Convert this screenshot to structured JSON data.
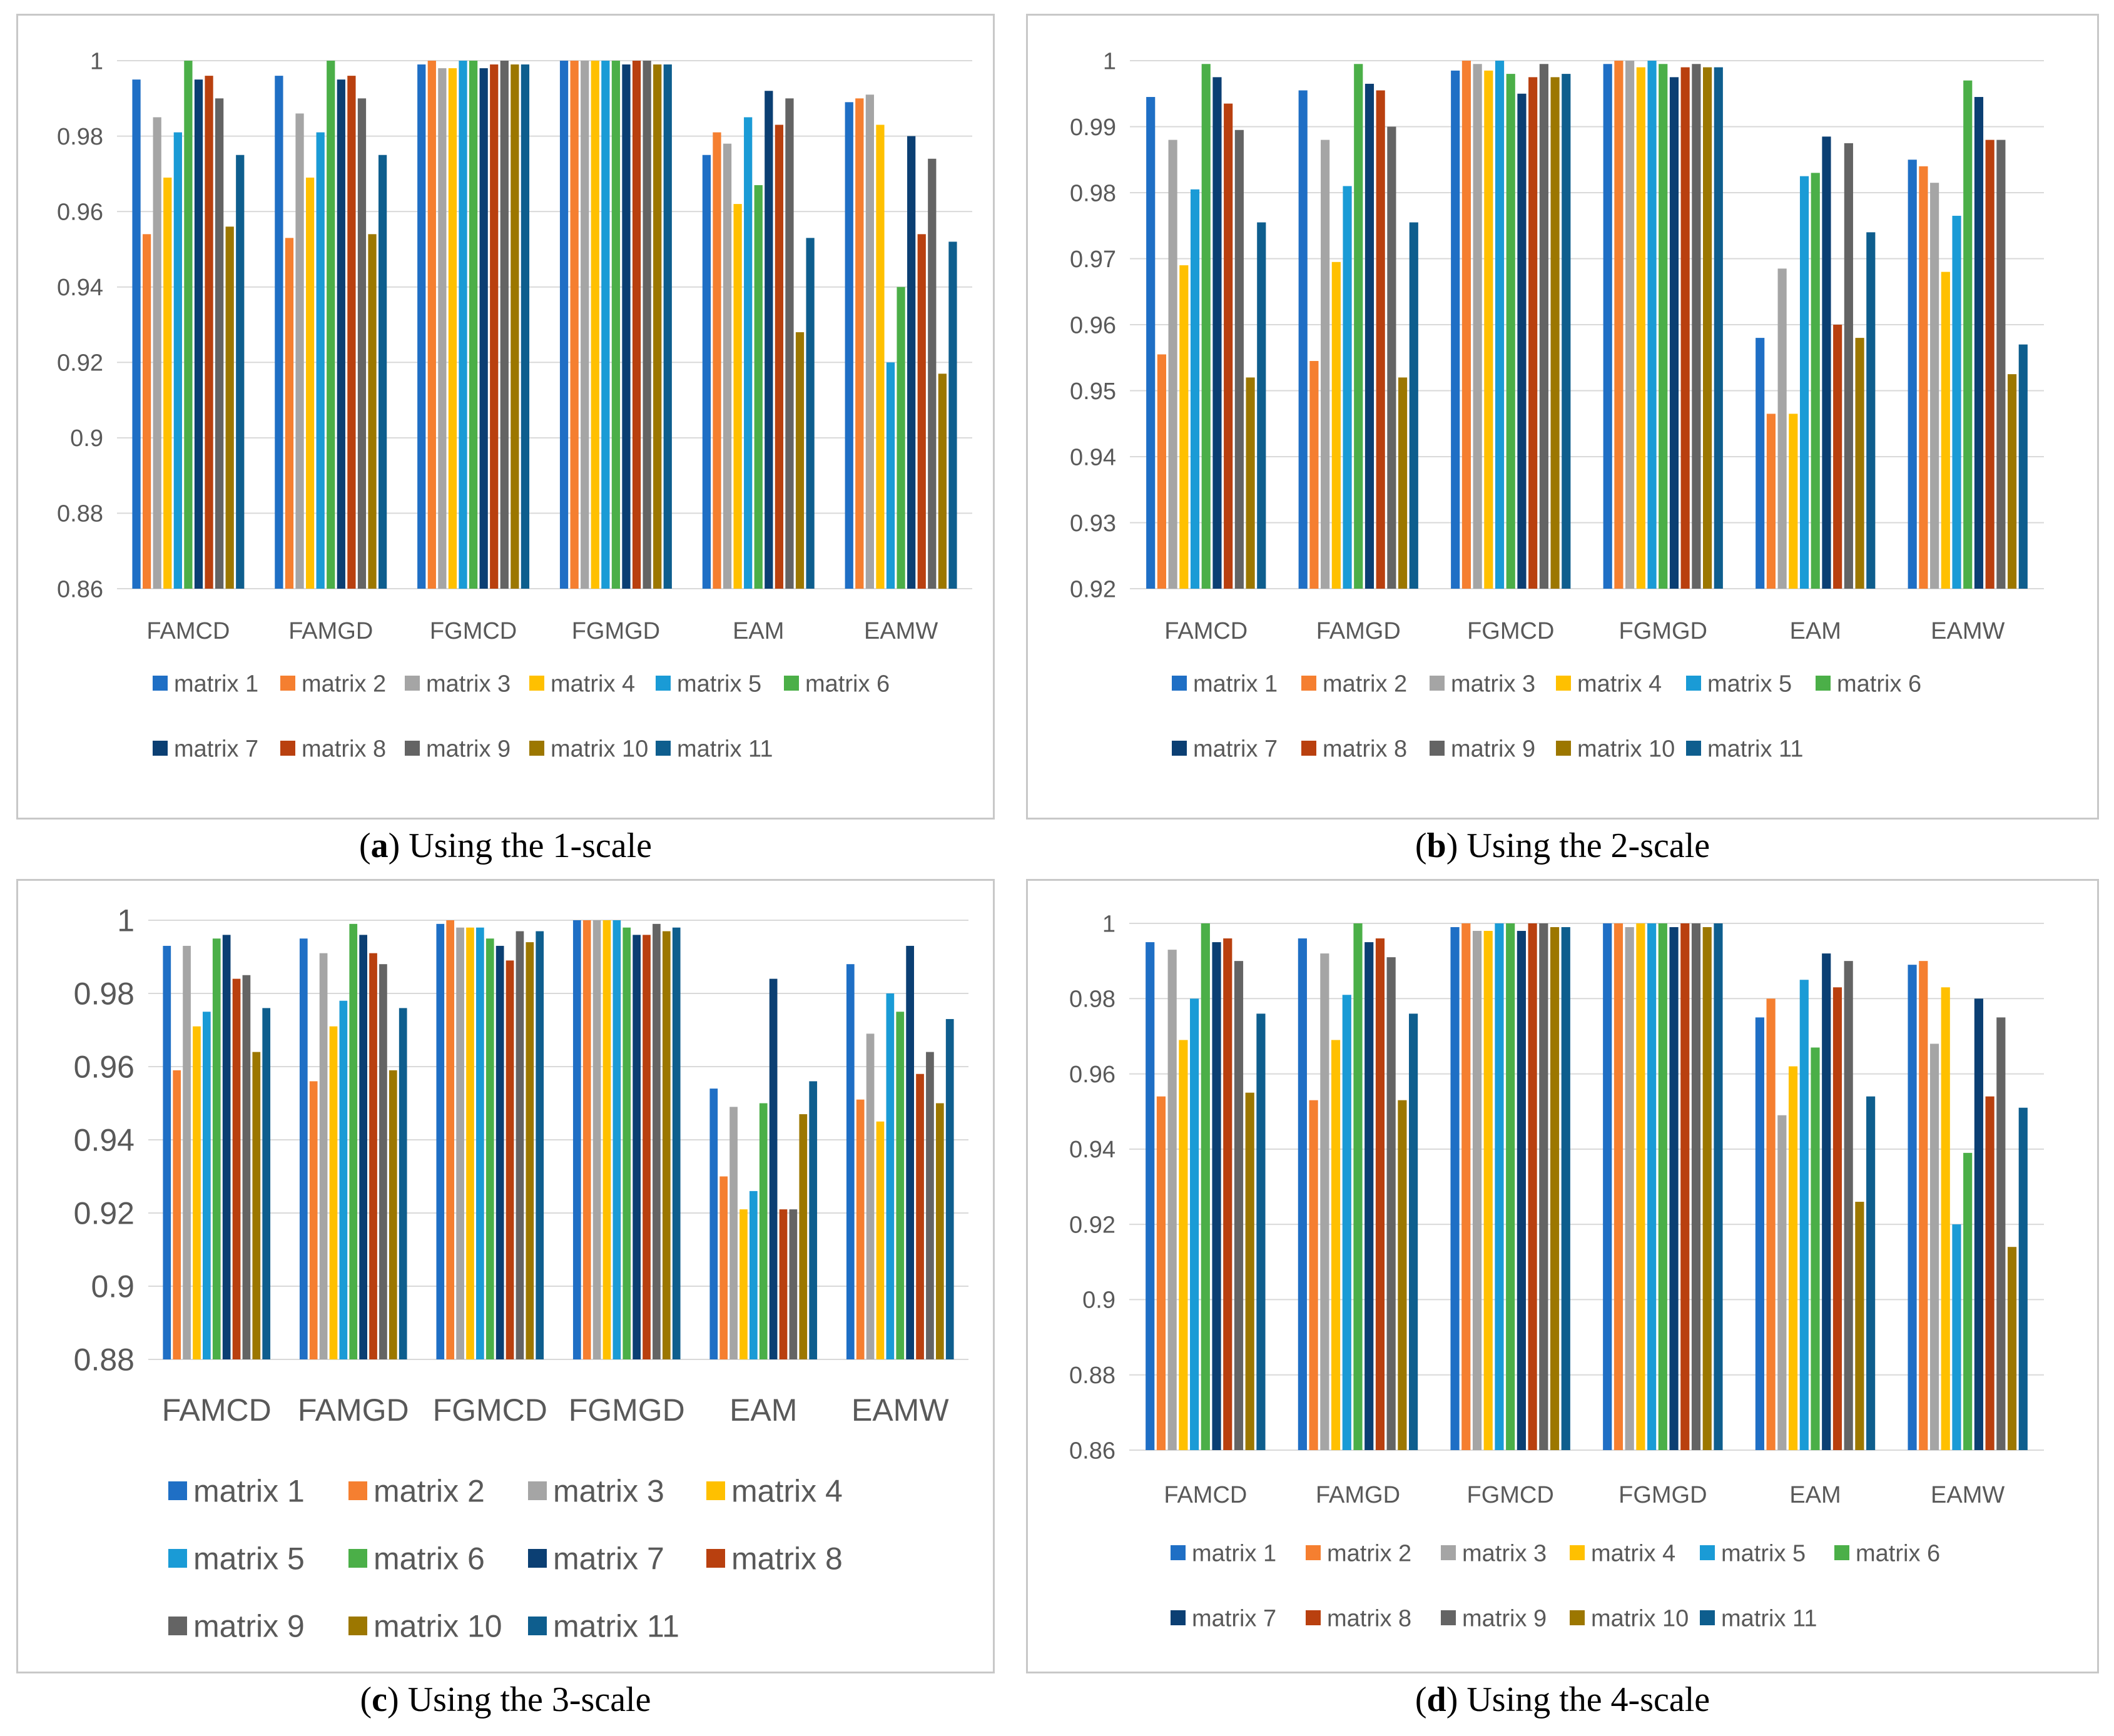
{
  "series_names": [
    "matrix 1",
    "matrix 2",
    "matrix 3",
    "matrix 4",
    "matrix 5",
    "matrix 6",
    "matrix 7",
    "matrix 8",
    "matrix 9",
    "matrix 10",
    "matrix 11"
  ],
  "colors": [
    "#1F6FC5",
    "#F57F30",
    "#A5A5A5",
    "#FFC000",
    "#1A9BD6",
    "#4BAF48",
    "#0B3F73",
    "#B9400F",
    "#646464",
    "#9C7700",
    "#0E5E8E"
  ],
  "panels": [
    {
      "caption_letter": "a",
      "caption_text": "Using the 1-scale",
      "chart_data": {
        "type": "bar",
        "title": "",
        "categories": [
          "FAMCD",
          "FAMGD",
          "FGMCD",
          "FGMGD",
          "EAM",
          "EAMW"
        ],
        "ylim": [
          0.86,
          1.0
        ],
        "yticks": [
          0.86,
          0.88,
          0.9,
          0.92,
          0.94,
          0.96,
          0.98,
          1
        ],
        "ytick_labels": [
          "0.86",
          "0.88",
          "0.9",
          "0.92",
          "0.94",
          "0.96",
          "0.98",
          "1"
        ],
        "legend": "bottom",
        "series": [
          {
            "name": "matrix 1",
            "values": [
              0.995,
              0.996,
              0.999,
              1.0,
              0.975,
              0.989
            ]
          },
          {
            "name": "matrix 2",
            "values": [
              0.954,
              0.953,
              1.0,
              1.0,
              0.981,
              0.99
            ]
          },
          {
            "name": "matrix 3",
            "values": [
              0.985,
              0.986,
              0.998,
              1.0,
              0.978,
              0.991
            ]
          },
          {
            "name": "matrix 4",
            "values": [
              0.969,
              0.969,
              0.998,
              1.0,
              0.962,
              0.983
            ]
          },
          {
            "name": "matrix 5",
            "values": [
              0.981,
              0.981,
              1.0,
              1.0,
              0.985,
              0.92
            ]
          },
          {
            "name": "matrix 6",
            "values": [
              1.0,
              1.0,
              1.0,
              1.0,
              0.967,
              0.94
            ]
          },
          {
            "name": "matrix 7",
            "values": [
              0.995,
              0.995,
              0.998,
              0.999,
              0.992,
              0.98
            ]
          },
          {
            "name": "matrix 8",
            "values": [
              0.996,
              0.996,
              0.999,
              1.0,
              0.983,
              0.954
            ]
          },
          {
            "name": "matrix 9",
            "values": [
              0.99,
              0.99,
              1.0,
              1.0,
              0.99,
              0.974
            ]
          },
          {
            "name": "matrix 10",
            "values": [
              0.956,
              0.954,
              0.999,
              0.999,
              0.928,
              0.917
            ]
          },
          {
            "name": "matrix 11",
            "values": [
              0.975,
              0.975,
              0.999,
              0.999,
              0.953,
              0.952
            ]
          }
        ]
      }
    },
    {
      "caption_letter": "b",
      "caption_text": "Using the 2-scale",
      "chart_data": {
        "type": "bar",
        "title": "",
        "categories": [
          "FAMCD",
          "FAMGD",
          "FGMCD",
          "FGMGD",
          "EAM",
          "EAMW"
        ],
        "ylim": [
          0.92,
          1.0
        ],
        "yticks": [
          0.92,
          0.93,
          0.94,
          0.95,
          0.96,
          0.97,
          0.98,
          0.99,
          1
        ],
        "ytick_labels": [
          "0.92",
          "0.93",
          "0.94",
          "0.95",
          "0.96",
          "0.97",
          "0.98",
          "0.99",
          "1"
        ],
        "legend": "bottom",
        "series": [
          {
            "name": "matrix 1",
            "values": [
              0.9945,
              0.9955,
              0.9985,
              0.9995,
              0.958,
              0.985
            ]
          },
          {
            "name": "matrix 2",
            "values": [
              0.9555,
              0.9545,
              1.0,
              1.0,
              0.9465,
              0.984
            ]
          },
          {
            "name": "matrix 3",
            "values": [
              0.988,
              0.988,
              0.9995,
              1.0,
              0.9685,
              0.9815
            ]
          },
          {
            "name": "matrix 4",
            "values": [
              0.969,
              0.9695,
              0.9985,
              0.999,
              0.9465,
              0.968
            ]
          },
          {
            "name": "matrix 5",
            "values": [
              0.9805,
              0.981,
              1.0,
              1.0,
              0.9825,
              0.9765
            ]
          },
          {
            "name": "matrix 6",
            "values": [
              0.9995,
              0.9995,
              0.998,
              0.9995,
              0.983,
              0.997
            ]
          },
          {
            "name": "matrix 7",
            "values": [
              0.9975,
              0.9965,
              0.995,
              0.9975,
              0.9885,
              0.9945
            ]
          },
          {
            "name": "matrix 8",
            "values": [
              0.9935,
              0.9955,
              0.9975,
              0.999,
              0.96,
              0.988
            ]
          },
          {
            "name": "matrix 9",
            "values": [
              0.9895,
              0.99,
              0.9995,
              0.9995,
              0.9875,
              0.988
            ]
          },
          {
            "name": "matrix 10",
            "values": [
              0.952,
              0.952,
              0.9975,
              0.999,
              0.958,
              0.9525
            ]
          },
          {
            "name": "matrix 11",
            "values": [
              0.9755,
              0.9755,
              0.998,
              0.999,
              0.974,
              0.957
            ]
          }
        ]
      }
    },
    {
      "caption_letter": "c",
      "caption_text": "Using the 3-scale",
      "chart_data": {
        "type": "bar",
        "title": "",
        "categories": [
          "FAMCD",
          "FAMGD",
          "FGMCD",
          "FGMGD",
          "EAM",
          "EAMW"
        ],
        "ylim": [
          0.88,
          1.0
        ],
        "yticks": [
          0.88,
          0.9,
          0.92,
          0.94,
          0.96,
          0.98,
          1
        ],
        "ytick_labels": [
          "0.88",
          "0.9",
          "0.92",
          "0.94",
          "0.96",
          "0.98",
          "1"
        ],
        "legend": "bottom",
        "series": [
          {
            "name": "matrix 1",
            "values": [
              0.993,
              0.995,
              0.999,
              1.0,
              0.954,
              0.988
            ]
          },
          {
            "name": "matrix 2",
            "values": [
              0.959,
              0.956,
              1.0,
              1.0,
              0.93,
              0.951
            ]
          },
          {
            "name": "matrix 3",
            "values": [
              0.993,
              0.991,
              0.998,
              1.0,
              0.949,
              0.969
            ]
          },
          {
            "name": "matrix 4",
            "values": [
              0.971,
              0.971,
              0.998,
              1.0,
              0.921,
              0.945
            ]
          },
          {
            "name": "matrix 5",
            "values": [
              0.975,
              0.978,
              0.998,
              1.0,
              0.926,
              0.98
            ]
          },
          {
            "name": "matrix 6",
            "values": [
              0.995,
              0.999,
              0.995,
              0.998,
              0.95,
              0.975
            ]
          },
          {
            "name": "matrix 7",
            "values": [
              0.996,
              0.996,
              0.993,
              0.996,
              0.984,
              0.993
            ]
          },
          {
            "name": "matrix 8",
            "values": [
              0.984,
              0.991,
              0.989,
              0.996,
              0.921,
              0.958
            ]
          },
          {
            "name": "matrix 9",
            "values": [
              0.985,
              0.988,
              0.997,
              0.999,
              0.921,
              0.964
            ]
          },
          {
            "name": "matrix 10",
            "values": [
              0.964,
              0.959,
              0.994,
              0.997,
              0.947,
              0.95
            ]
          },
          {
            "name": "matrix 11",
            "values": [
              0.976,
              0.976,
              0.997,
              0.998,
              0.956,
              0.973
            ]
          }
        ]
      }
    },
    {
      "caption_letter": "d",
      "caption_text": "Using the 4-scale",
      "chart_data": {
        "type": "bar",
        "title": "",
        "categories": [
          "FAMCD",
          "FAMGD",
          "FGMCD",
          "FGMGD",
          "EAM",
          "EAMW"
        ],
        "ylim": [
          0.86,
          1.0
        ],
        "yticks": [
          0.86,
          0.88,
          0.9,
          0.92,
          0.94,
          0.96,
          0.98,
          1
        ],
        "ytick_labels": [
          "0.86",
          "0.88",
          "0.9",
          "0.92",
          "0.94",
          "0.96",
          "0.98",
          "1"
        ],
        "legend": "bottom",
        "series": [
          {
            "name": "matrix 1",
            "values": [
              0.995,
              0.996,
              0.999,
              1.0,
              0.975,
              0.989
            ]
          },
          {
            "name": "matrix 2",
            "values": [
              0.954,
              0.953,
              1.0,
              1.0,
              0.98,
              0.99
            ]
          },
          {
            "name": "matrix 3",
            "values": [
              0.993,
              0.992,
              0.998,
              0.999,
              0.949,
              0.968
            ]
          },
          {
            "name": "matrix 4",
            "values": [
              0.969,
              0.969,
              0.998,
              1.0,
              0.962,
              0.983
            ]
          },
          {
            "name": "matrix 5",
            "values": [
              0.98,
              0.981,
              1.0,
              1.0,
              0.985,
              0.92
            ]
          },
          {
            "name": "matrix 6",
            "values": [
              1.0,
              1.0,
              1.0,
              1.0,
              0.967,
              0.939
            ]
          },
          {
            "name": "matrix 7",
            "values": [
              0.995,
              0.995,
              0.998,
              0.999,
              0.992,
              0.98
            ]
          },
          {
            "name": "matrix 8",
            "values": [
              0.996,
              0.996,
              1.0,
              1.0,
              0.983,
              0.954
            ]
          },
          {
            "name": "matrix 9",
            "values": [
              0.99,
              0.991,
              1.0,
              1.0,
              0.99,
              0.975
            ]
          },
          {
            "name": "matrix 10",
            "values": [
              0.955,
              0.953,
              0.999,
              0.999,
              0.926,
              0.914
            ]
          },
          {
            "name": "matrix 11",
            "values": [
              0.976,
              0.976,
              0.999,
              1.0,
              0.954,
              0.951
            ]
          }
        ]
      }
    }
  ]
}
